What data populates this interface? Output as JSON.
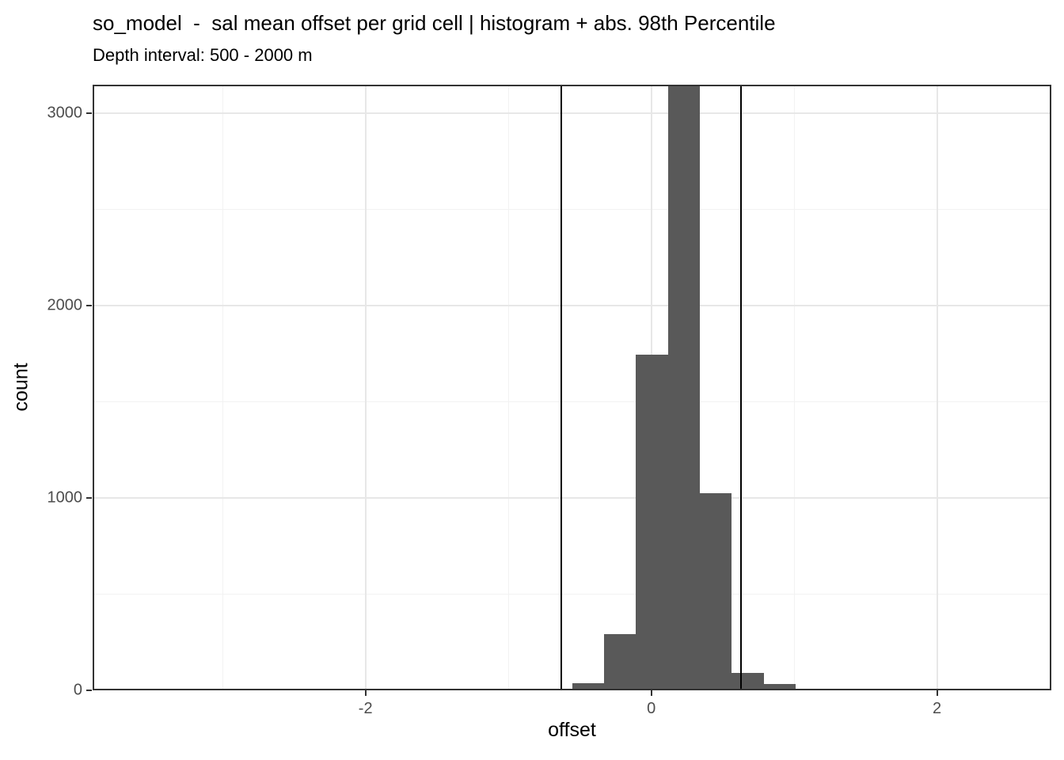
{
  "chart_data": {
    "type": "bar",
    "subtype": "histogram",
    "title": "so_model  -  sal mean offset per grid cell | histogram + abs. 98th Percentile",
    "subtitle": "Depth interval: 500 - 2000 m",
    "xlabel": "offset",
    "ylabel": "count",
    "xlim": [
      -3.91,
      2.8
    ],
    "ylim": [
      0,
      3146
    ],
    "x_ticks": [
      -2,
      0,
      2
    ],
    "y_ticks": [
      0,
      1000,
      2000,
      3000
    ],
    "x_minor_gridlines": [
      -3,
      -1,
      1
    ],
    "y_minor_gridlines": [
      500,
      1500,
      2500
    ],
    "bins": {
      "edges": [
        -0.778,
        -0.554,
        -0.33,
        -0.107,
        0.117,
        0.34,
        0.564,
        0.788,
        1.011
      ],
      "counts": [
        6,
        36,
        291,
        1742,
        3500,
        1023,
        91,
        34
      ]
    },
    "peak_bar_clipped_at_ylim": true,
    "vlines": [
      -0.63,
      0.63
    ],
    "vline_meaning": "abs. 98th Percentile",
    "colors": {
      "bar_fill": "#595959",
      "vline": "#000000",
      "panel_border": "#333333",
      "grid_major": "#e7e7e7",
      "grid_minor": "#f2f2f2",
      "tick_label": "#4d4d4d",
      "text": "#000000"
    },
    "grid": true,
    "legend": "none"
  }
}
